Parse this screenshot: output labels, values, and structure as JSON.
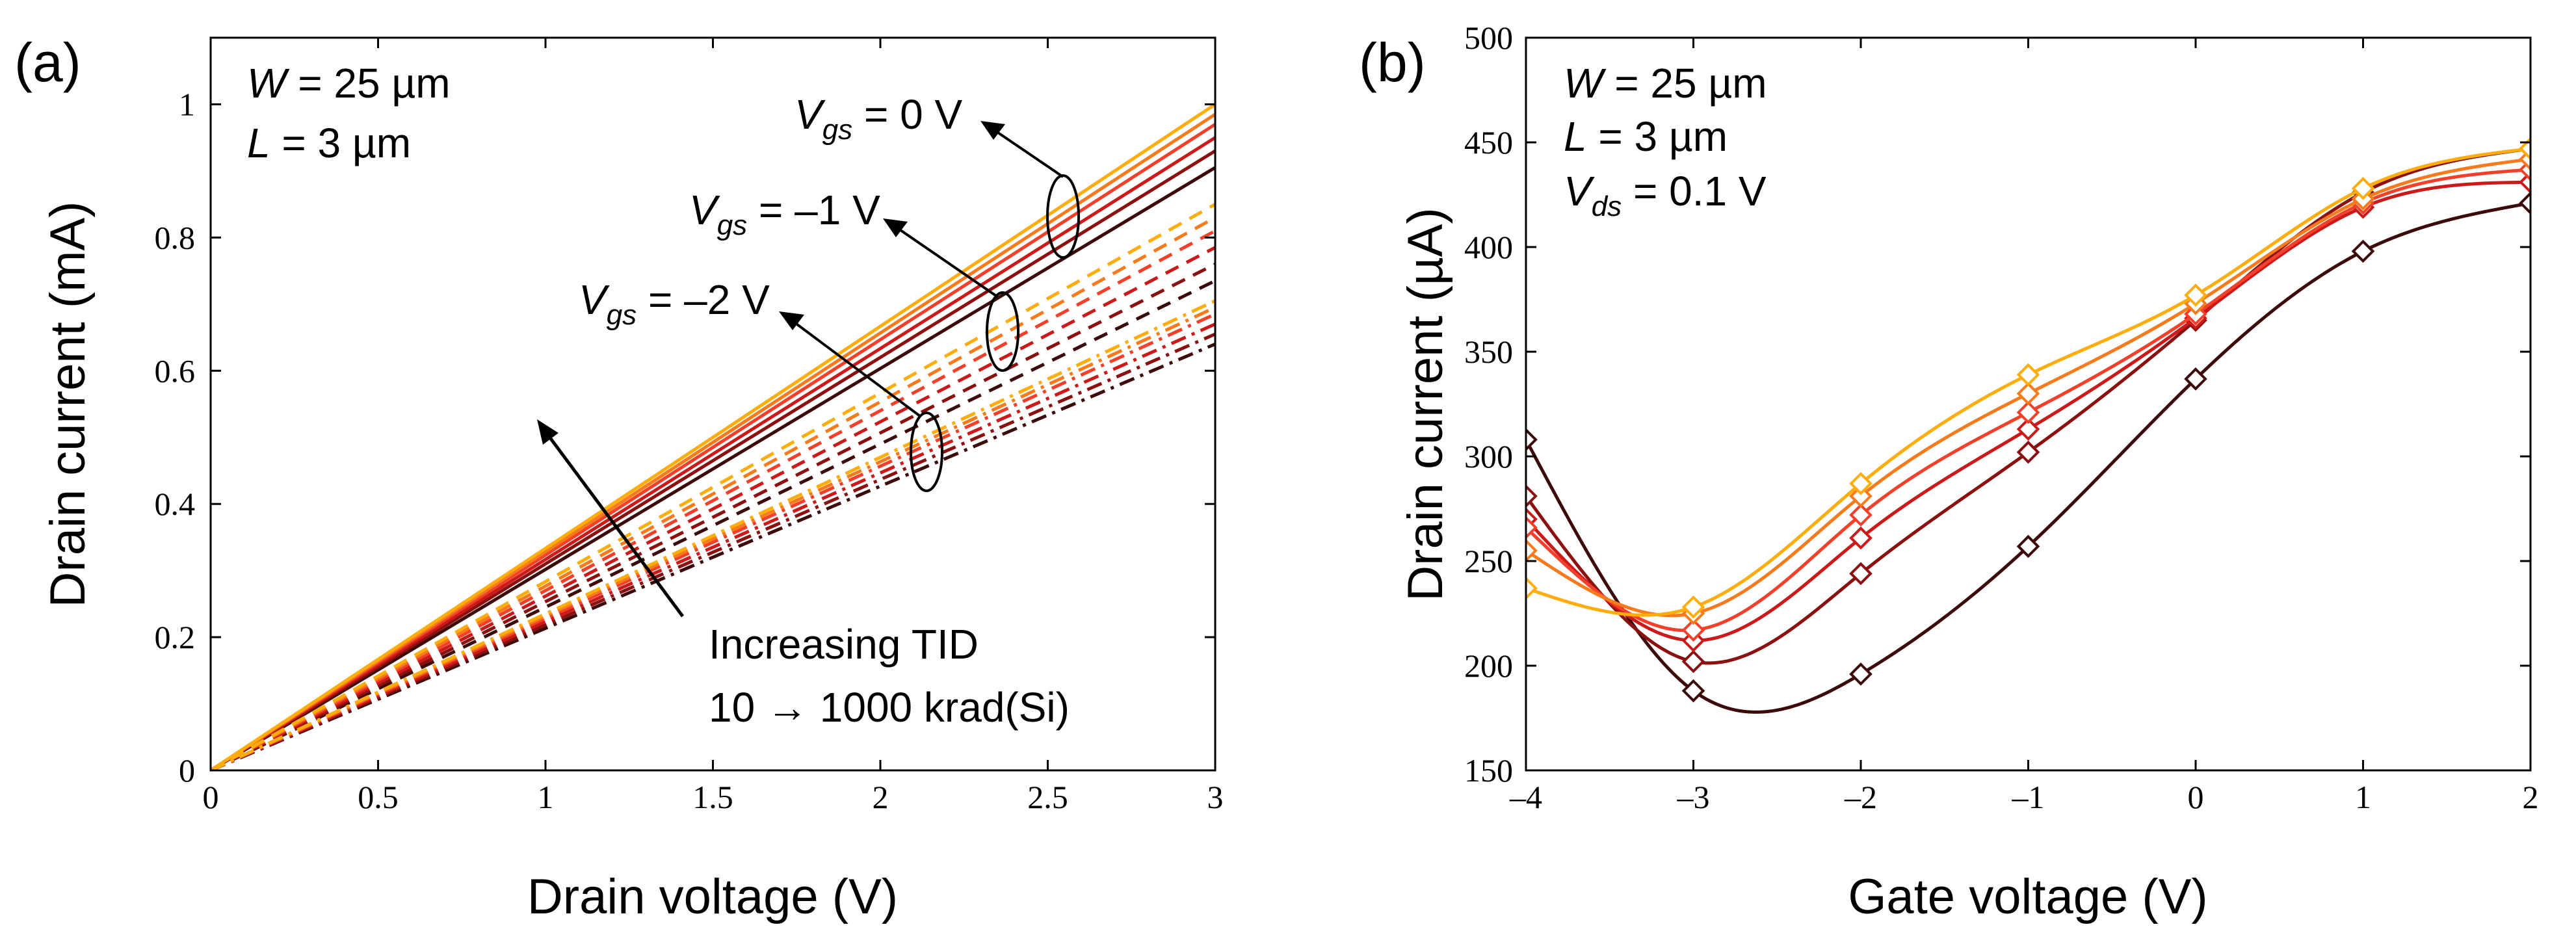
{
  "chart_data": [
    {
      "panel": "(a)",
      "type": "line",
      "xlabel": "Drain voltage (V)",
      "ylabel": "Drain current (mA)",
      "xlim": [
        0,
        3
      ],
      "ylim": [
        0,
        1.1
      ],
      "xticks": [
        0,
        0.5,
        1,
        1.5,
        2,
        2.5,
        3
      ],
      "xtick_labels": [
        "0",
        "0.5",
        "1",
        "1.5",
        "2",
        "2.5",
        "3"
      ],
      "yticks": [
        0,
        0.2,
        0.4,
        0.6,
        0.8,
        1
      ],
      "ytick_labels": [
        "0",
        "0.2",
        "0.4",
        "0.6",
        "0.8",
        "1"
      ],
      "tid_colors": [
        "#3d0a0a",
        "#8b1010",
        "#cc1a1a",
        "#f2402a",
        "#f77b1c",
        "#ffad0d"
      ],
      "groups": [
        {
          "name": "Vgs = 0 V",
          "style": "solid",
          "series": [
            {
              "name": "TID 1",
              "x": [
                0,
                3
              ],
              "y": [
                0,
                0.905
              ],
              "color_index": 0
            },
            {
              "name": "TID 2",
              "x": [
                0,
                3
              ],
              "y": [
                0,
                0.93
              ],
              "color_index": 1
            },
            {
              "name": "TID 3",
              "x": [
                0,
                3
              ],
              "y": [
                0,
                0.95
              ],
              "color_index": 2
            },
            {
              "name": "TID 4",
              "x": [
                0,
                3
              ],
              "y": [
                0,
                0.97
              ],
              "color_index": 3
            },
            {
              "name": "TID 5",
              "x": [
                0,
                3
              ],
              "y": [
                0,
                0.985
              ],
              "color_index": 4
            },
            {
              "name": "TID 6",
              "x": [
                0,
                3
              ],
              "y": [
                0,
                1.0
              ],
              "color_index": 5
            }
          ]
        },
        {
          "name": "Vgs = -1 V",
          "style": "dashed",
          "series": [
            {
              "name": "TID 1",
              "x": [
                0,
                3
              ],
              "y": [
                0,
                0.735
              ],
              "color_index": 0
            },
            {
              "name": "TID 2",
              "x": [
                0,
                3
              ],
              "y": [
                0,
                0.76
              ],
              "color_index": 1
            },
            {
              "name": "TID 3",
              "x": [
                0,
                3
              ],
              "y": [
                0,
                0.785
              ],
              "color_index": 2
            },
            {
              "name": "TID 4",
              "x": [
                0,
                3
              ],
              "y": [
                0,
                0.81
              ],
              "color_index": 3
            },
            {
              "name": "TID 5",
              "x": [
                0,
                3
              ],
              "y": [
                0,
                0.83
              ],
              "color_index": 4
            },
            {
              "name": "TID 6",
              "x": [
                0,
                3
              ],
              "y": [
                0,
                0.85
              ],
              "color_index": 5
            }
          ]
        },
        {
          "name": "Vgs = -2 V",
          "style": "dashdot",
          "series": [
            {
              "name": "TID 1",
              "x": [
                0,
                3
              ],
              "y": [
                0,
                0.64
              ],
              "color_index": 0
            },
            {
              "name": "TID 2",
              "x": [
                0,
                3
              ],
              "y": [
                0,
                0.655
              ],
              "color_index": 1
            },
            {
              "name": "TID 3",
              "x": [
                0,
                3
              ],
              "y": [
                0,
                0.67
              ],
              "color_index": 2
            },
            {
              "name": "TID 4",
              "x": [
                0,
                3
              ],
              "y": [
                0,
                0.685
              ],
              "color_index": 3
            },
            {
              "name": "TID 5",
              "x": [
                0,
                3
              ],
              "y": [
                0,
                0.695
              ],
              "color_index": 4
            },
            {
              "name": "TID 6",
              "x": [
                0,
                3
              ],
              "y": [
                0,
                0.705
              ],
              "color_index": 5
            }
          ]
        }
      ],
      "annotations": {
        "W": "W",
        "W_value": " = 25 µm",
        "L": "L",
        "L_value": " = 3 µm",
        "vgs_symbol": "V",
        "vgs_sub": "gs",
        "vgs0_value": " = 0 V",
        "vgs1_value": " = –1 V",
        "vgs2_value": " = –2 V",
        "tid_line1": "Increasing TID",
        "tid_line2": "10 → 1000 krad(Si)"
      }
    },
    {
      "panel": "(b)",
      "type": "line",
      "xlabel": "Gate voltage (V)",
      "ylabel": "Drain current (µA)",
      "xlim": [
        -4,
        2
      ],
      "ylim": [
        150,
        500
      ],
      "xticks": [
        -4,
        -3,
        -2,
        -1,
        0,
        1,
        2
      ],
      "xtick_labels": [
        "–4",
        "–3",
        "–2",
        "–1",
        "0",
        "1",
        "2"
      ],
      "yticks": [
        150,
        200,
        250,
        300,
        350,
        400,
        450,
        500
      ],
      "ytick_labels": [
        "150",
        "200",
        "250",
        "300",
        "350",
        "400",
        "450",
        "500"
      ],
      "series": [
        {
          "name": "TID 1",
          "color": "#3d0a0a",
          "x": [
            -4,
            -3,
            -2,
            -1,
            0,
            1,
            2
          ],
          "y": [
            308,
            188,
            196,
            257,
            337,
            398,
            421
          ]
        },
        {
          "name": "TID 2",
          "color": "#8b1010",
          "x": [
            -4,
            -3,
            -2,
            -1,
            0,
            1,
            2
          ],
          "y": [
            281,
            202,
            244,
            302,
            365,
            426,
            447
          ]
        },
        {
          "name": "TID 3",
          "color": "#cc1a1a",
          "x": [
            -4,
            -3,
            -2,
            -1,
            0,
            1,
            2
          ],
          "y": [
            270,
            212,
            261,
            313,
            366,
            419,
            431
          ]
        },
        {
          "name": "TID 4",
          "color": "#f2402a",
          "x": [
            -4,
            -3,
            -2,
            -1,
            0,
            1,
            2
          ],
          "y": [
            266,
            217,
            272,
            321,
            368,
            421,
            437
          ]
        },
        {
          "name": "TID 5",
          "color": "#f77b1c",
          "x": [
            -4,
            -3,
            -2,
            -1,
            0,
            1,
            2
          ],
          "y": [
            255,
            225,
            281,
            330,
            373,
            423,
            442
          ]
        },
        {
          "name": "TID 6",
          "color": "#ffad0d",
          "x": [
            -4,
            -3,
            -2,
            -1,
            0,
            1,
            2
          ],
          "y": [
            237,
            228,
            287,
            339,
            377,
            428,
            447
          ]
        }
      ],
      "annotations": {
        "W": "W",
        "W_value": " = 25 µm",
        "L": "L",
        "L_value": " = 3 µm",
        "vds_symbol": "V",
        "vds_sub": "ds",
        "vds_value": " = 0.1 V"
      }
    }
  ]
}
